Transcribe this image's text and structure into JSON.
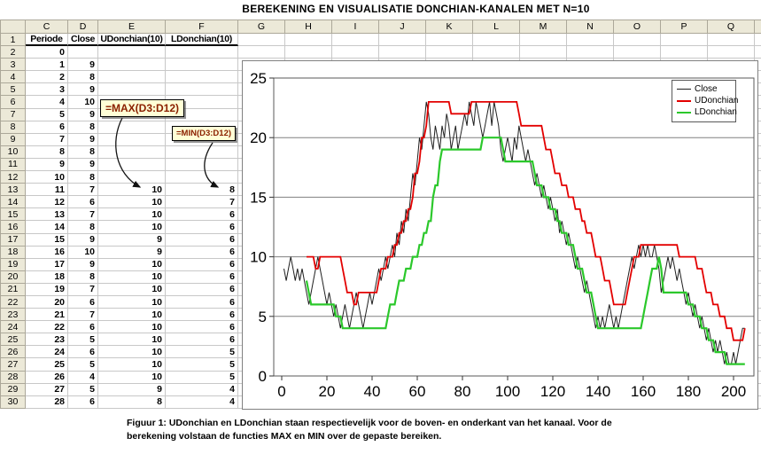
{
  "title": "BEREKENING EN VISUALISATIE DONCHIAN-KANALEN MET N=10",
  "sheet": {
    "column_letters": [
      "C",
      "D",
      "E",
      "F",
      "G",
      "H",
      "I",
      "J",
      "K",
      "L",
      "M",
      "N",
      "O",
      "P",
      "Q"
    ],
    "header_labels": [
      "Periode",
      "Close",
      "UDonchian(10)",
      "LDonchian(10)"
    ],
    "rows": [
      [
        2,
        "0",
        "",
        "",
        ""
      ],
      [
        3,
        "1",
        "9",
        "",
        ""
      ],
      [
        4,
        "2",
        "8",
        "",
        ""
      ],
      [
        5,
        "3",
        "9",
        "",
        ""
      ],
      [
        6,
        "4",
        "10",
        "",
        ""
      ],
      [
        7,
        "5",
        "9",
        "",
        ""
      ],
      [
        8,
        "6",
        "8",
        "",
        ""
      ],
      [
        9,
        "7",
        "9",
        "",
        ""
      ],
      [
        10,
        "8",
        "8",
        "",
        ""
      ],
      [
        11,
        "9",
        "9",
        "",
        ""
      ],
      [
        12,
        "10",
        "8",
        "",
        ""
      ],
      [
        13,
        "11",
        "7",
        "10",
        "8"
      ],
      [
        14,
        "12",
        "6",
        "10",
        "7"
      ],
      [
        15,
        "13",
        "7",
        "10",
        "6"
      ],
      [
        16,
        "14",
        "8",
        "10",
        "6"
      ],
      [
        17,
        "15",
        "9",
        "9",
        "6"
      ],
      [
        18,
        "16",
        "10",
        "9",
        "6"
      ],
      [
        19,
        "17",
        "9",
        "10",
        "6"
      ],
      [
        20,
        "18",
        "8",
        "10",
        "6"
      ],
      [
        21,
        "19",
        "7",
        "10",
        "6"
      ],
      [
        22,
        "20",
        "6",
        "10",
        "6"
      ],
      [
        23,
        "21",
        "7",
        "10",
        "6"
      ],
      [
        24,
        "22",
        "6",
        "10",
        "6"
      ],
      [
        25,
        "23",
        "5",
        "10",
        "6"
      ],
      [
        26,
        "24",
        "6",
        "10",
        "5"
      ],
      [
        27,
        "25",
        "5",
        "10",
        "5"
      ],
      [
        28,
        "26",
        "4",
        "10",
        "5"
      ],
      [
        29,
        "27",
        "5",
        "9",
        "4"
      ],
      [
        30,
        "28",
        "6",
        "8",
        "4"
      ]
    ]
  },
  "callouts": {
    "max": "=MAX(D3:D12)",
    "min": "=MIN(D3:D12)"
  },
  "chart_data": {
    "type": "line",
    "x_ticks": [
      0,
      20,
      40,
      60,
      80,
      100,
      120,
      140,
      160,
      180,
      200
    ],
    "y_ticks": [
      0,
      5,
      10,
      15,
      20,
      25
    ],
    "xlim": [
      0,
      209
    ],
    "ylim": [
      0,
      25
    ],
    "grid": "horizontal",
    "legend_position": "top-right",
    "donchian_window": 10,
    "close_start_x": 1,
    "legend": [
      {
        "name": "Close",
        "color": "#202020"
      },
      {
        "name": "UDonchian",
        "color": "#E30000"
      },
      {
        "name": "LDonchian",
        "color": "#2BC82B"
      }
    ],
    "close": [
      9,
      8,
      9,
      10,
      9,
      8,
      9,
      8,
      9,
      8,
      7,
      6,
      7,
      8,
      9,
      10,
      9,
      8,
      7,
      6,
      7,
      6,
      5,
      6,
      5,
      4,
      5,
      6,
      5,
      4,
      5,
      6,
      7,
      6,
      5,
      4,
      5,
      6,
      7,
      6,
      7,
      8,
      9,
      8,
      9,
      10,
      9,
      10,
      11,
      10,
      12,
      11,
      13,
      12,
      14,
      13,
      15,
      17,
      16,
      18,
      20,
      19,
      21,
      23,
      22,
      20,
      19,
      21,
      20,
      19,
      21,
      20,
      22,
      21,
      19,
      20,
      21,
      19,
      20,
      21,
      22,
      21,
      23,
      22,
      21,
      23,
      22,
      21,
      20,
      21,
      22,
      23,
      21,
      23,
      22,
      21,
      19,
      18,
      19,
      20,
      19,
      18,
      20,
      19,
      21,
      20,
      19,
      18,
      19,
      18,
      17,
      16,
      17,
      16,
      15,
      16,
      15,
      14,
      15,
      14,
      13,
      14,
      12,
      13,
      12,
      11,
      12,
      11,
      10,
      9,
      10,
      9,
      8,
      7,
      8,
      7,
      6,
      5,
      4,
      5,
      4,
      5,
      4,
      5,
      6,
      5,
      4,
      5,
      4,
      5,
      6,
      7,
      8,
      9,
      10,
      9,
      10,
      11,
      10,
      11,
      10,
      11,
      10,
      10,
      11,
      10,
      9,
      7,
      8,
      9,
      10,
      9,
      10,
      9,
      8,
      9,
      8,
      7,
      6,
      7,
      6,
      5,
      6,
      5,
      4,
      5,
      4,
      3,
      4,
      3,
      2,
      3,
      2,
      3,
      2,
      1,
      2,
      1,
      1,
      2,
      1,
      2,
      3,
      4,
      4
    ]
  },
  "caption": "Figuur 1: UDonchian en LDonchian staan respectievelijk voor de boven- en onderkant van het kanaal. Voor de berekening volstaan de functies MAX en MIN over de gepaste bereiken."
}
